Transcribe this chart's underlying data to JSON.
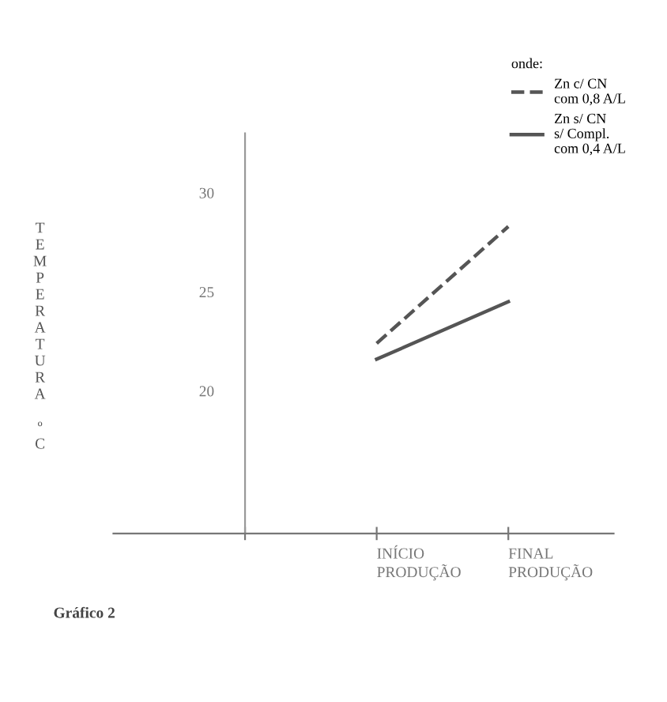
{
  "chart_data": {
    "type": "line",
    "ylabel": "TEMPERATURA ºC",
    "legend_title": "onde:",
    "legend": "top right",
    "grid": false,
    "categories": [
      null,
      "INÍCIO\nPRODUÇÃO",
      "FINAL\nPRODUÇÃO"
    ],
    "ylim": [
      12.8,
      33
    ],
    "yticks": [
      20,
      25,
      30
    ],
    "series": [
      {
        "name": "Zn c/ CN\ncom 0,8 A/L",
        "color": "#555555",
        "line_style": "dashed",
        "values": [
          null,
          22.4,
          28.3
        ]
      },
      {
        "name": "Zn s/ CN\ns/ Compl.\ncom 0,4 A/L",
        "color": "#555555",
        "line_style": "solid",
        "values": [
          null,
          21.6,
          24.5
        ]
      }
    ],
    "annotations": [
      "Gráfico 2"
    ]
  }
}
